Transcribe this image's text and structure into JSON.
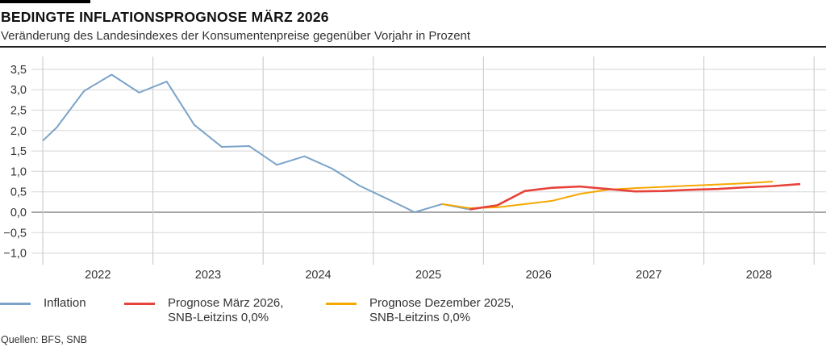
{
  "header": {
    "title": "BEDINGTE INFLATIONSPROGNOSE MÄRZ 2026",
    "subtitle": "Veränderung des Landesindexes der Konsumentenpreise gegenüber Vorjahr in Prozent"
  },
  "chart_data": {
    "type": "line",
    "title": "BEDINGTE INFLATIONSPROGNOSE MÄRZ 2026",
    "subtitle": "Veränderung des Landesindexes der Konsumentenpreise gegenüber Vorjahr in Prozent",
    "xlabel": "",
    "ylabel": "",
    "x_tick_labels": [
      "2022",
      "2023",
      "2024",
      "2025",
      "2026",
      "2027",
      "2028"
    ],
    "y_tick_labels": [
      "3,5",
      "3,0",
      "2,5",
      "2,0",
      "1,5",
      "1,0",
      "0,5",
      "0,0",
      "−0,5",
      "−1,0"
    ],
    "y_ticks": [
      3.5,
      3.0,
      2.5,
      2.0,
      1.5,
      1.0,
      0.5,
      0.0,
      -0.5,
      -1.0
    ],
    "xlim": [
      2022.0,
      2029.0
    ],
    "ylim": [
      -1.25,
      3.75
    ],
    "grid": true,
    "legend_position": "bottom",
    "series": [
      {
        "name": "Inflation",
        "color": "#7ba3c9",
        "x": [
          "2022Q0",
          "2022Q1",
          "2022Q2",
          "2022Q3",
          "2022Q4",
          "2023Q1",
          "2023Q2",
          "2023Q3",
          "2023Q4",
          "2024Q1",
          "2024Q2",
          "2024Q3",
          "2024Q4",
          "2025Q1",
          "2025Q2",
          "2025Q3",
          "2025Q4"
        ],
        "values": [
          1.75,
          2.07,
          2.97,
          3.37,
          2.93,
          3.2,
          2.14,
          1.6,
          1.62,
          1.16,
          1.37,
          1.07,
          0.65,
          0.33,
          0.0,
          0.2,
          0.07
        ]
      },
      {
        "name": "Prognose März 2026,\nSNB-Leitzins 0,0%",
        "color": "#e8413a",
        "x": [
          "2025Q4",
          "2026Q1",
          "2026Q2",
          "2026Q3",
          "2026Q4",
          "2027Q1",
          "2027Q2",
          "2027Q3",
          "2027Q4",
          "2028Q1",
          "2028Q2",
          "2028Q3",
          "2028Q4"
        ],
        "values": [
          0.07,
          0.17,
          0.52,
          0.6,
          0.63,
          0.57,
          0.51,
          0.52,
          0.55,
          0.57,
          0.61,
          0.64,
          0.69
        ]
      },
      {
        "name": "Prognose Dezember 2025,\nSNB-Leitzins 0,0%",
        "color": "#f5a800",
        "x": [
          "2025Q3",
          "2025Q4",
          "2026Q1",
          "2026Q2",
          "2026Q3",
          "2026Q4",
          "2027Q1",
          "2027Q2",
          "2027Q3",
          "2027Q4",
          "2028Q1",
          "2028Q2",
          "2028Q3"
        ],
        "values": [
          0.2,
          0.1,
          0.12,
          0.2,
          0.28,
          0.45,
          0.55,
          0.59,
          0.62,
          0.65,
          0.68,
          0.71,
          0.75
        ]
      }
    ]
  },
  "legend": {
    "items": [
      {
        "label": "Inflation",
        "color": "#7ba3c9"
      },
      {
        "label": "Prognose März 2026,\nSNB-Leitzins 0,0%",
        "color": "#e8413a"
      },
      {
        "label": "Prognose Dezember 2025,\nSNB-Leitzins 0,0%",
        "color": "#f5a800"
      }
    ]
  },
  "footer": {
    "source": "Quellen: BFS, SNB"
  }
}
